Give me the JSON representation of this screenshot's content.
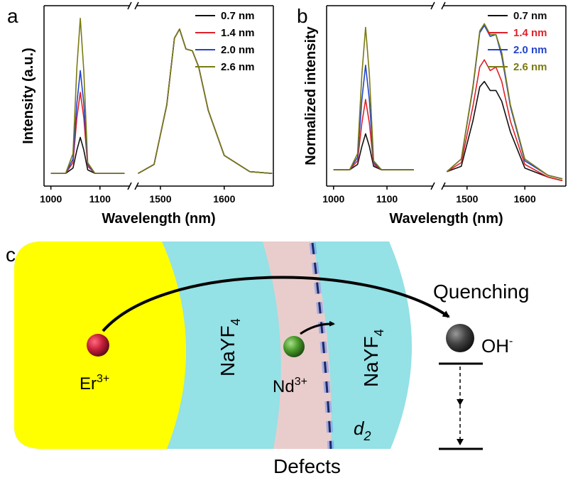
{
  "chart_data": [
    {
      "type": "line",
      "panel_label": "a",
      "xlabel": "Wavelength (nm)",
      "ylabel": "Intensity (a.u.)",
      "xlim": [
        986,
        1677
      ],
      "xbreak": [
        1164,
        1460
      ],
      "xticks": [
        1000,
        1100,
        1500,
        1600
      ],
      "ylim": [
        0,
        1
      ],
      "legend": "upper right",
      "legend_text_colored": false,
      "x": [
        1000,
        1030,
        1045,
        1053,
        1060,
        1067,
        1075,
        1090,
        1150,
        1465,
        1490,
        1510,
        1522,
        1530,
        1540,
        1550,
        1560,
        1575,
        1600,
        1640,
        1675
      ],
      "series": [
        {
          "name": "0.7 nm",
          "color": "#111111",
          "values": [
            0.07,
            0.07,
            0.1,
            0.2,
            0.27,
            0.2,
            0.09,
            0.07,
            0.07,
            0.07,
            0.12,
            0.45,
            0.82,
            0.87,
            0.76,
            0.75,
            0.66,
            0.42,
            0.17,
            0.08,
            0.07
          ]
        },
        {
          "name": "1.4 nm",
          "color": "#e0202a",
          "values": [
            0.07,
            0.07,
            0.13,
            0.38,
            0.52,
            0.38,
            0.11,
            0.07,
            0.07,
            0.07,
            0.12,
            0.45,
            0.82,
            0.87,
            0.76,
            0.75,
            0.66,
            0.42,
            0.17,
            0.08,
            0.07
          ]
        },
        {
          "name": "2.0 nm",
          "color": "#2244cc",
          "values": [
            0.07,
            0.07,
            0.15,
            0.46,
            0.64,
            0.46,
            0.12,
            0.07,
            0.07,
            0.07,
            0.12,
            0.45,
            0.82,
            0.87,
            0.76,
            0.75,
            0.66,
            0.42,
            0.17,
            0.08,
            0.07
          ]
        },
        {
          "name": "2.6 nm",
          "color": "#7a7a12",
          "values": [
            0.07,
            0.07,
            0.18,
            0.66,
            0.93,
            0.64,
            0.13,
            0.07,
            0.07,
            0.07,
            0.12,
            0.45,
            0.82,
            0.87,
            0.76,
            0.75,
            0.66,
            0.42,
            0.17,
            0.08,
            0.07
          ]
        }
      ]
    },
    {
      "type": "line",
      "panel_label": "b",
      "xlabel": "Wavelength (nm)",
      "ylabel": "Normalized intensity",
      "xlim": [
        987,
        1671
      ],
      "xbreak": [
        1189,
        1456
      ],
      "xticks": [
        1000,
        1100,
        1500,
        1600
      ],
      "ylim": [
        0,
        1
      ],
      "legend": "upper right",
      "legend_text_colored": true,
      "x": [
        1000,
        1030,
        1045,
        1053,
        1060,
        1067,
        1075,
        1090,
        1150,
        1465,
        1490,
        1510,
        1522,
        1530,
        1540,
        1550,
        1560,
        1575,
        1600,
        1640,
        1665
      ],
      "series": [
        {
          "name": "0.7 nm",
          "color": "#111111",
          "values": [
            0.09,
            0.09,
            0.12,
            0.22,
            0.29,
            0.22,
            0.11,
            0.09,
            0.09,
            0.08,
            0.11,
            0.36,
            0.55,
            0.58,
            0.53,
            0.53,
            0.47,
            0.3,
            0.1,
            0.05,
            0.03
          ]
        },
        {
          "name": "1.4 nm",
          "color": "#e0202a",
          "values": [
            0.09,
            0.09,
            0.14,
            0.35,
            0.48,
            0.35,
            0.12,
            0.09,
            0.09,
            0.08,
            0.13,
            0.44,
            0.66,
            0.7,
            0.64,
            0.66,
            0.58,
            0.36,
            0.12,
            0.05,
            0.03
          ]
        },
        {
          "name": "2.0 nm",
          "color": "#2244cc",
          "values": [
            0.09,
            0.09,
            0.16,
            0.48,
            0.67,
            0.48,
            0.13,
            0.09,
            0.09,
            0.08,
            0.15,
            0.54,
            0.85,
            0.89,
            0.83,
            0.84,
            0.72,
            0.44,
            0.14,
            0.06,
            0.04
          ]
        },
        {
          "name": "2.6 nm",
          "color": "#7a7a12",
          "values": [
            0.09,
            0.09,
            0.18,
            0.62,
            0.88,
            0.62,
            0.14,
            0.09,
            0.09,
            0.08,
            0.15,
            0.55,
            0.86,
            0.9,
            0.84,
            0.84,
            0.74,
            0.45,
            0.15,
            0.06,
            0.04
          ]
        }
      ]
    }
  ],
  "diagram": {
    "panel_label": "c",
    "shell_label": "NaYF",
    "shell_sub": "4",
    "outer_shell_label": "NaYF",
    "outer_shell_sub": "4",
    "er_ion": "Er",
    "er_charge": "3+",
    "nd_ion": "Nd",
    "nd_charge": "3+",
    "oh": "OH",
    "oh_charge": "-",
    "quenching": "Quenching",
    "defects": "Defects",
    "thickness": "d",
    "thickness_sub": "2"
  }
}
